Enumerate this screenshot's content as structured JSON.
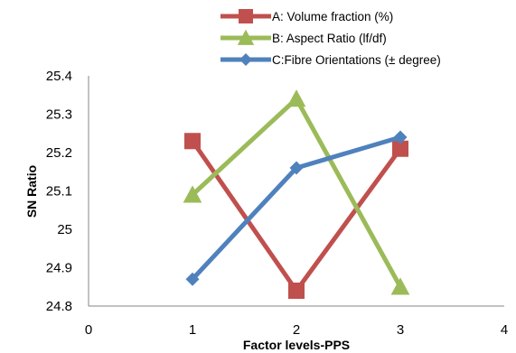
{
  "chart_data": {
    "type": "line",
    "title": "",
    "xlabel": "Factor levels-PPS",
    "ylabel": "SN Ratio",
    "xlim": [
      0,
      4
    ],
    "ylim": [
      24.8,
      25.4
    ],
    "x_ticks": [
      "0",
      "1",
      "2",
      "3",
      "4"
    ],
    "y_ticks": [
      "24.8",
      "24.9",
      "25",
      "25.1",
      "25.2",
      "25.3",
      "25.4"
    ],
    "grid": false,
    "legend_position": "top",
    "series": [
      {
        "name": "A: Volume fraction (%)",
        "marker": "square",
        "color": "#C0504D",
        "x": [
          1,
          2,
          3
        ],
        "y": [
          25.23,
          24.84,
          25.21
        ]
      },
      {
        "name": "B: Aspect Ratio (lf/df)",
        "marker": "triangle",
        "color": "#9BBB59",
        "x": [
          1,
          2,
          3
        ],
        "y": [
          25.09,
          25.34,
          24.85
        ]
      },
      {
        "name": "C:Fibre Orientations (± degree)",
        "marker": "diamond",
        "color": "#4F81BD",
        "x": [
          1,
          2,
          3
        ],
        "y": [
          24.87,
          25.16,
          25.24
        ]
      }
    ]
  }
}
